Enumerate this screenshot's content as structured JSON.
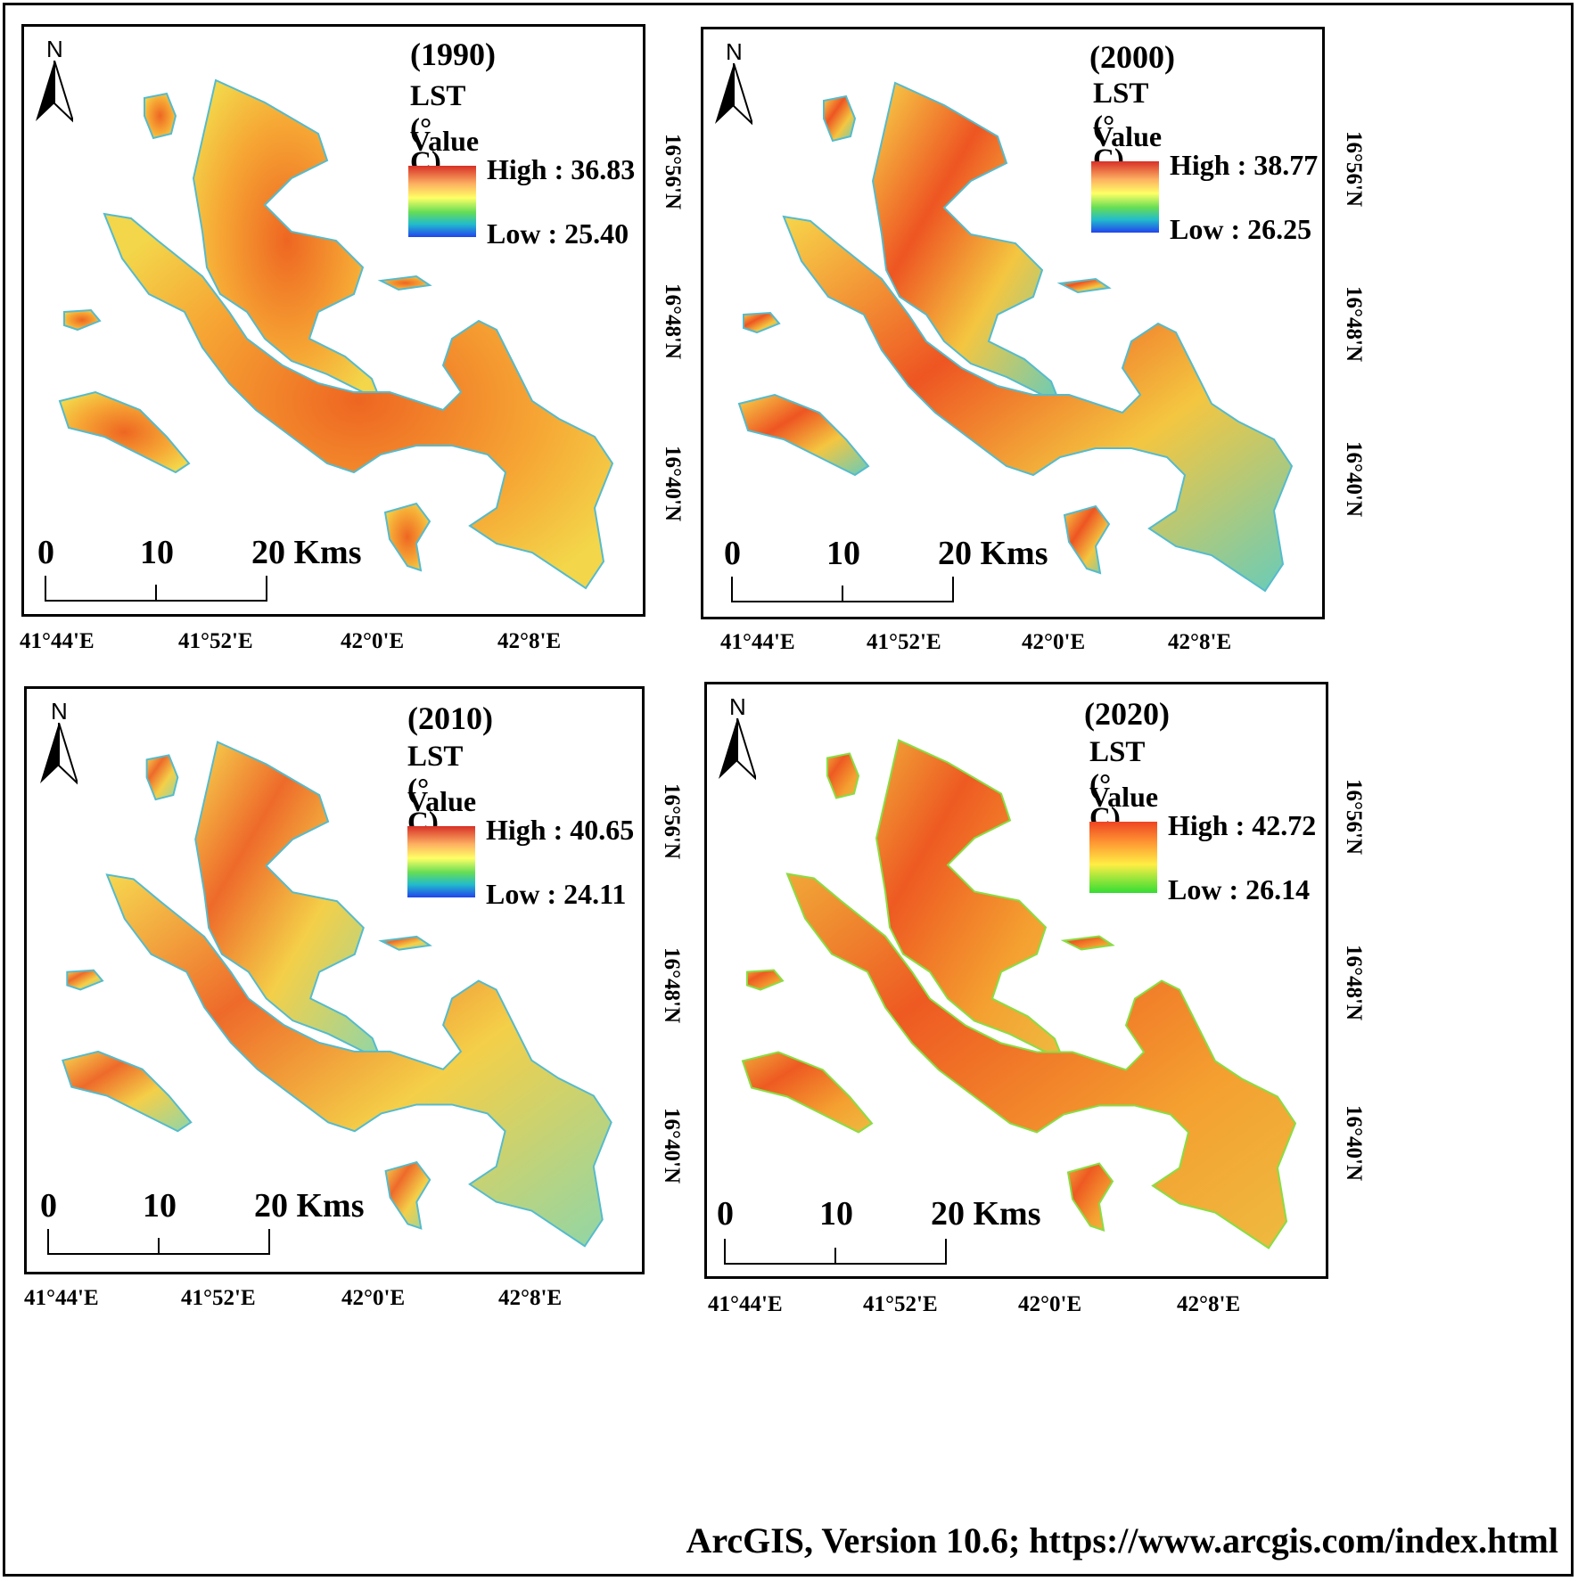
{
  "credit": "ArcGIS, Version 10.6; https://www.arcgis.com/index.html",
  "lst_label": "LST (° C)",
  "value_label": "Value",
  "north_label": "N",
  "scale": {
    "labels": [
      "0",
      "10",
      "20 Kms"
    ]
  },
  "longitudes": [
    "41°44'E",
    "41°52'E",
    "42°0'E",
    "42°8'E"
  ],
  "latitudes": [
    "16°56'N",
    "16°48'N",
    "16°40'N"
  ],
  "colors": {
    "ramp_full": [
      "#d73027",
      "#fdae61",
      "#ffff66",
      "#66dd55",
      "#22bbcc",
      "#2244ee"
    ],
    "ramp_2020": [
      "#ee4422",
      "#ff9933",
      "#ffee44",
      "#99ee33",
      "#33dd33"
    ]
  },
  "panels": [
    {
      "year": "(1990)",
      "high": "High : 36.83",
      "low": "Low : 25.40"
    },
    {
      "year": "(2000)",
      "high": "High : 38.77",
      "low": "Low : 26.25"
    },
    {
      "year": "(2010)",
      "high": "High : 40.65",
      "low": "Low : 24.11"
    },
    {
      "year": "(2020)",
      "high": "High : 42.72",
      "low": "Low : 26.14"
    }
  ]
}
